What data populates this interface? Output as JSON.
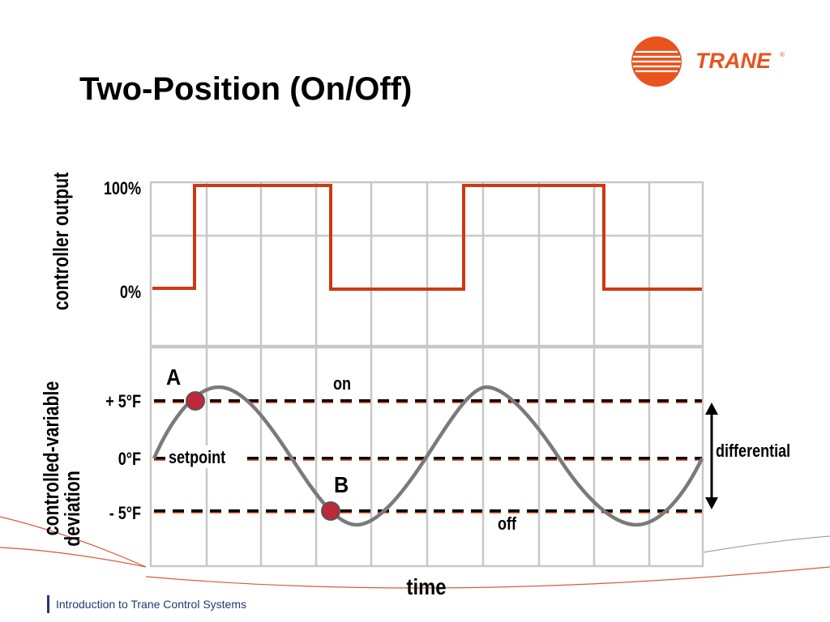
{
  "slide": {
    "title": "Two-Position (On/Off)",
    "footer": "Introduction to Trane Control Systems"
  },
  "logo": {
    "text": "TRANE",
    "registered": "®",
    "icon": "trane-circle-logo-icon",
    "color": "#e8531e"
  },
  "colors": {
    "accent": "#cc3a12",
    "grid": "#c8c8c8",
    "wave": "#7a7a7a",
    "point_fill": "#c0283a"
  },
  "output_chart": {
    "ylabel": "controller output",
    "tick_100": "100%",
    "tick_0": "0%"
  },
  "deviation_chart": {
    "ylabel_line1": "controlled-variable",
    "ylabel_line2": "deviation",
    "tick_plus": "+ 5°F",
    "tick_zero": "0°F",
    "tick_minus": "- 5°F",
    "setpoint_label": "setpoint",
    "on_label": "on",
    "off_label": "off",
    "differential_label": "differential",
    "point_a": "A",
    "point_b": "B"
  },
  "xlabel": "time"
}
